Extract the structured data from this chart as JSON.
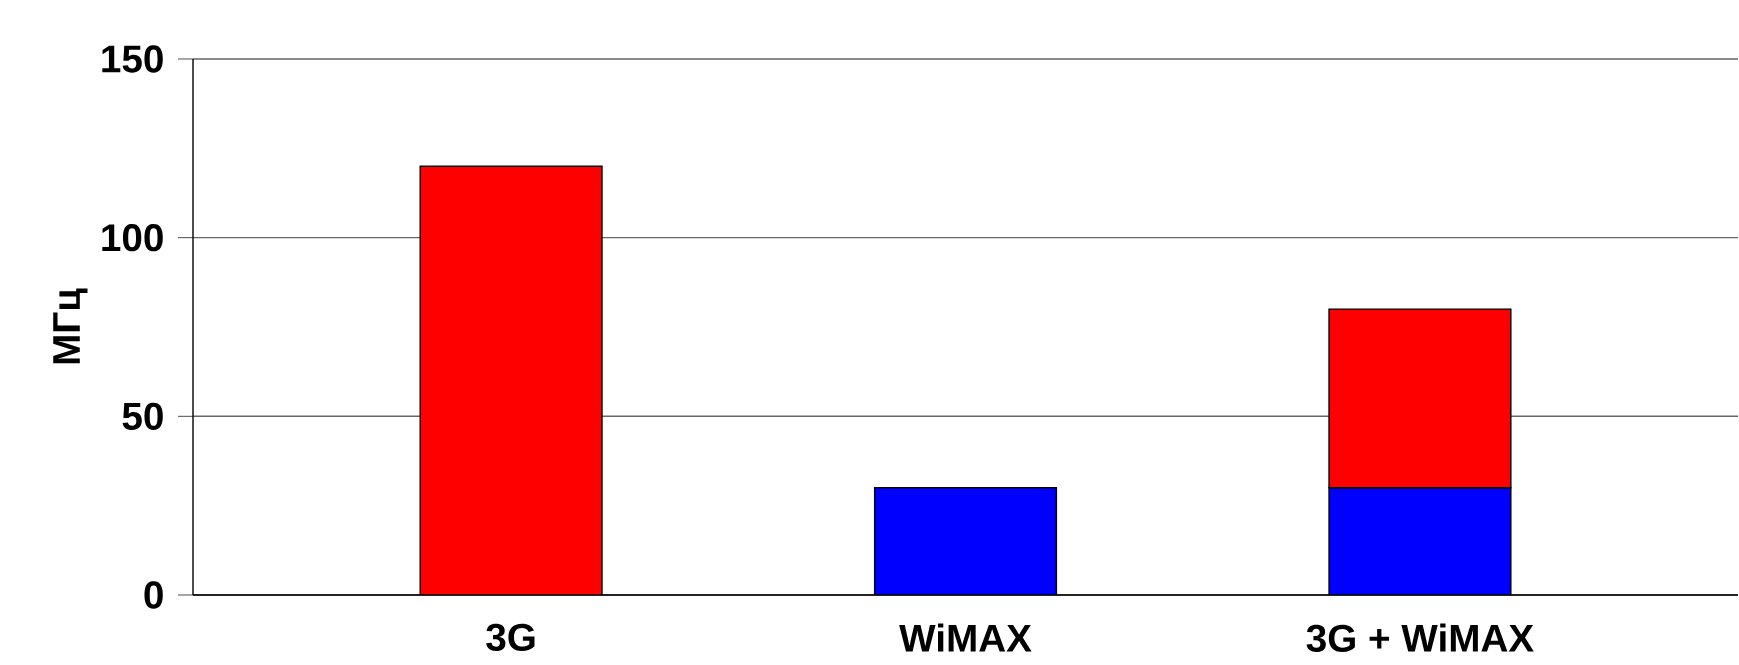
{
  "chart_data": {
    "type": "bar",
    "stacked": true,
    "ylabel": "МГц",
    "categories": [
      "3G",
      "WiMAX",
      "3G + WiMAX"
    ],
    "series": [
      {
        "color": "#0000ff",
        "values": [
          null,
          30,
          30
        ]
      },
      {
        "color": "#ff0000",
        "values": [
          120,
          null,
          50
        ]
      }
    ],
    "ylim": [
      0,
      150
    ],
    "yticks": [
      0,
      50,
      100,
      150
    ],
    "grid": "y"
  }
}
